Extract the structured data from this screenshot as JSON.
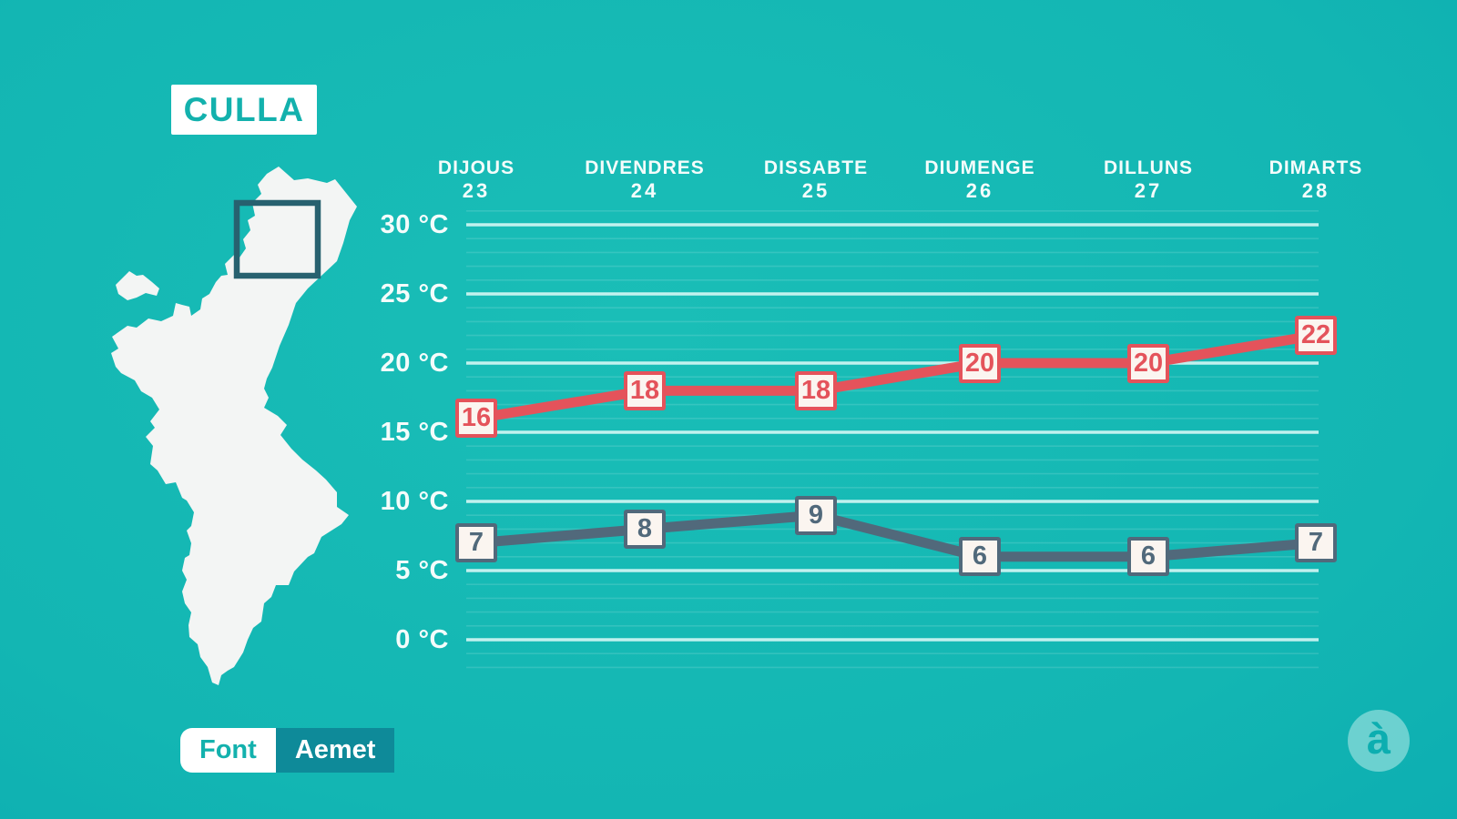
{
  "title": "CULLA",
  "source": {
    "label": "Font",
    "value": "Aemet"
  },
  "logo": {
    "glyph": "à"
  },
  "colors": {
    "background_teal": "#13b6b3",
    "accent_teal": "#13b1ad",
    "max_series_red": "#e4535b",
    "min_series_slate": "#51697b",
    "gridline_major": "#cdf2ef",
    "map_fill": "#f3f5f4",
    "map_highlight_stroke": "#27616f",
    "source_value_bg": "#0e8a99"
  },
  "chart_data": {
    "type": "line",
    "title": "",
    "categories": [
      {
        "day": "DIJOUS",
        "date": "23"
      },
      {
        "day": "DIVENDRES",
        "date": "24"
      },
      {
        "day": "DISSABTE",
        "date": "25"
      },
      {
        "day": "DIUMENGE",
        "date": "26"
      },
      {
        "day": "DILLUNS",
        "date": "27"
      },
      {
        "day": "DIMARTS",
        "date": "28"
      }
    ],
    "series": [
      {
        "name": "maximum-temperature",
        "color": "#e4535b",
        "values": [
          16,
          18,
          18,
          20,
          20,
          22
        ]
      },
      {
        "name": "minimum-temperature",
        "color": "#51697b",
        "values": [
          7,
          8,
          9,
          6,
          6,
          7
        ]
      }
    ],
    "yticks": [
      {
        "label": "30 °C",
        "value": 30
      },
      {
        "label": "25 °C",
        "value": 25
      },
      {
        "label": "20 °C",
        "value": 20
      },
      {
        "label": "15 °C",
        "value": 15
      },
      {
        "label": "10 °C",
        "value": 10
      },
      {
        "label": "5 °C",
        "value": 5
      },
      {
        "label": "0 °C",
        "value": 0
      }
    ],
    "ylim": [
      0,
      30
    ],
    "unit": "°C",
    "grid": {
      "major_step": 5,
      "minor_step": 1,
      "legend": "none"
    }
  }
}
